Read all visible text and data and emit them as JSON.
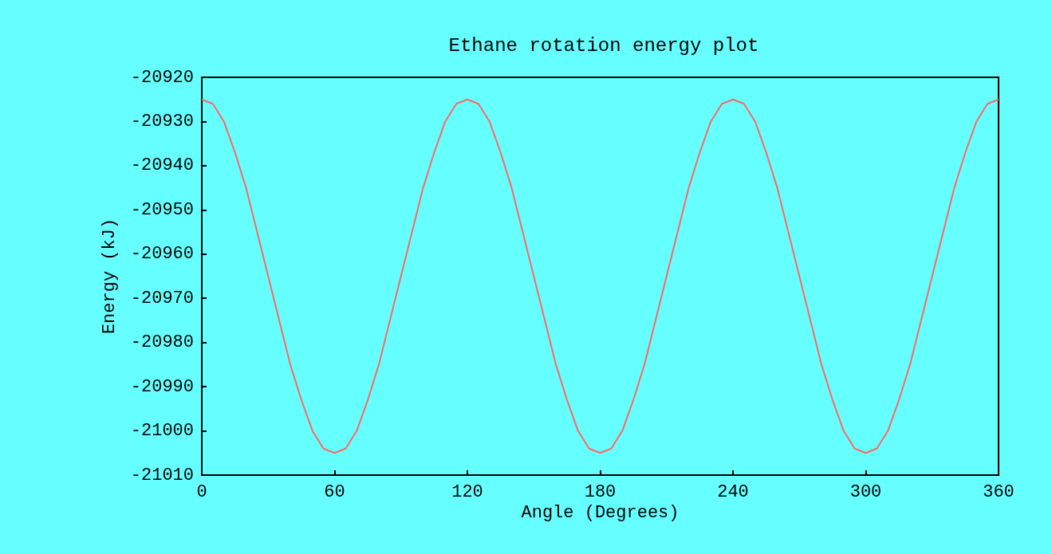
{
  "chart_data": {
    "type": "line",
    "title": "Ethane rotation energy plot",
    "xlabel": "Angle (Degrees)",
    "ylabel": "Energy (kJ)",
    "x": [
      0,
      5,
      10,
      15,
      20,
      25,
      30,
      35,
      40,
      45,
      50,
      55,
      60,
      65,
      70,
      75,
      80,
      85,
      90,
      95,
      100,
      105,
      110,
      115,
      120,
      125,
      130,
      135,
      140,
      145,
      150,
      155,
      160,
      165,
      170,
      175,
      180,
      185,
      190,
      195,
      200,
      205,
      210,
      215,
      220,
      225,
      230,
      235,
      240,
      245,
      250,
      255,
      260,
      265,
      270,
      275,
      280,
      285,
      290,
      295,
      300,
      305,
      310,
      315,
      320,
      325,
      330,
      335,
      340,
      345,
      350,
      355,
      360
    ],
    "series": [
      {
        "color": "#ff6666",
        "values": [
          -20925,
          -20926,
          -20930,
          -20937,
          -20945,
          -20955,
          -20965,
          -20975,
          -20985,
          -20993,
          -21000,
          -21004,
          -21005,
          -21004,
          -21000,
          -20993,
          -20985,
          -20975,
          -20965,
          -20955,
          -20945,
          -20937,
          -20930,
          -20926,
          -20925,
          -20926,
          -20930,
          -20937,
          -20945,
          -20955,
          -20965,
          -20975,
          -20985,
          -20993,
          -21000,
          -21004,
          -21005,
          -21004,
          -21000,
          -20993,
          -20985,
          -20975,
          -20965,
          -20955,
          -20945,
          -20937,
          -20930,
          -20926,
          -20925,
          -20926,
          -20930,
          -20937,
          -20945,
          -20955,
          -20965,
          -20975,
          -20985,
          -20993,
          -21000,
          -21004,
          -21005,
          -21004,
          -21000,
          -20993,
          -20985,
          -20975,
          -20965,
          -20955,
          -20945,
          -20937,
          -20930,
          -20926,
          -20925
        ]
      }
    ],
    "xlim": [
      0,
      360
    ],
    "xticks": [
      0,
      60,
      120,
      180,
      240,
      300,
      360
    ],
    "ylim": [
      -21010,
      -20920
    ],
    "yticks": [
      -21010,
      -21000,
      -20990,
      -20980,
      -20970,
      -20960,
      -20950,
      -20940,
      -20930,
      -20920
    ],
    "grid": false,
    "marker": "none",
    "line_style": "solid"
  }
}
